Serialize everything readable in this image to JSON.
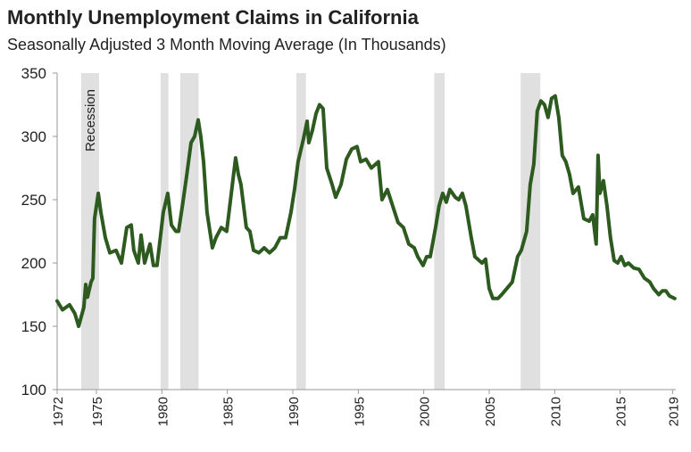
{
  "chart_data": {
    "type": "line",
    "title": "Monthly Unemployment Claims in California",
    "subtitle": "Seasonally Adjusted 3 Month Moving Average (In Thousands)",
    "recession_label": "Recession",
    "recessions": [
      [
        1973.84,
        1975.2
      ],
      [
        1979.9,
        1980.5
      ],
      [
        1981.4,
        1982.8
      ],
      [
        1990.27,
        1991.0
      ],
      [
        2000.8,
        2001.6
      ],
      [
        2007.4,
        2008.9
      ]
    ],
    "recession_color": "#e0e0e0",
    "x": [
      1972.0,
      1972.41,
      1972.95,
      1973.36,
      1973.64,
      1974.04,
      1974.18,
      1974.32,
      1974.59,
      1974.73,
      1974.86,
      1975.14,
      1975.34,
      1975.68,
      1976.02,
      1976.5,
      1976.91,
      1977.32,
      1977.66,
      1977.86,
      1978.2,
      1978.41,
      1978.68,
      1979.09,
      1979.36,
      1979.63,
      1980.11,
      1980.45,
      1980.73,
      1981.07,
      1981.27,
      1981.61,
      1981.88,
      1982.23,
      1982.5,
      1982.77,
      1982.97,
      1983.18,
      1983.45,
      1983.86,
      1984.13,
      1984.54,
      1984.95,
      1985.22,
      1985.63,
      1985.84,
      1986.04,
      1986.45,
      1986.72,
      1987.0,
      1987.41,
      1987.81,
      1988.22,
      1988.63,
      1989.04,
      1989.45,
      1989.86,
      1990.13,
      1990.4,
      1990.81,
      1991.09,
      1991.22,
      1991.5,
      1991.77,
      1992.04,
      1992.31,
      1992.59,
      1993.0,
      1993.27,
      1993.68,
      1994.09,
      1994.5,
      1994.9,
      1995.18,
      1995.59,
      1995.99,
      1996.54,
      1996.81,
      1997.22,
      1997.63,
      1998.04,
      1998.45,
      1998.86,
      1999.27,
      1999.54,
      1999.95,
      2000.22,
      2000.49,
      2000.9,
      2001.17,
      2001.45,
      2001.72,
      2001.99,
      2002.4,
      2002.67,
      2002.95,
      2003.22,
      2003.63,
      2003.9,
      2004.45,
      2004.72,
      2004.99,
      2005.27,
      2005.67,
      2005.95,
      2006.36,
      2006.76,
      2007.17,
      2007.45,
      2007.86,
      2008.13,
      2008.4,
      2008.67,
      2008.95,
      2009.22,
      2009.49,
      2009.76,
      2010.04,
      2010.31,
      2010.58,
      2010.85,
      2011.13,
      2011.4,
      2011.81,
      2012.22,
      2012.63,
      2012.9,
      2013.17,
      2013.31,
      2013.45,
      2013.72,
      2013.99,
      2014.26,
      2014.54,
      2014.81,
      2015.08,
      2015.35,
      2015.63,
      2016.04,
      2016.44,
      2016.85,
      2017.26,
      2017.54,
      2017.95,
      2018.22,
      2018.49,
      2018.76,
      2019.17
    ],
    "series": [
      {
        "name": "Unemployment Claims",
        "color": "#2d5a1e",
        "values": [
          170,
          163,
          167,
          160,
          150,
          165,
          183,
          173,
          185,
          188,
          235,
          255,
          240,
          220,
          208,
          210,
          200,
          228,
          230,
          210,
          200,
          222,
          200,
          215,
          198,
          198,
          240,
          255,
          230,
          225,
          225,
          248,
          268,
          295,
          300,
          313,
          300,
          280,
          240,
          212,
          220,
          228,
          225,
          248,
          283,
          270,
          262,
          228,
          225,
          210,
          208,
          212,
          208,
          212,
          220,
          220,
          240,
          258,
          280,
          298,
          312,
          295,
          305,
          318,
          325,
          322,
          275,
          262,
          252,
          262,
          282,
          290,
          292,
          280,
          282,
          275,
          280,
          250,
          258,
          245,
          232,
          228,
          215,
          212,
          205,
          198,
          205,
          205,
          228,
          245,
          255,
          248,
          258,
          252,
          250,
          255,
          245,
          220,
          205,
          200,
          203,
          180,
          172,
          172,
          175,
          180,
          185,
          205,
          210,
          225,
          262,
          278,
          320,
          328,
          325,
          315,
          330,
          332,
          315,
          285,
          280,
          270,
          255,
          260,
          235,
          233,
          238,
          215,
          285,
          255,
          265,
          245,
          220,
          202,
          200,
          205,
          198,
          200,
          196,
          195,
          188,
          185,
          180,
          175,
          178,
          178,
          174,
          172
        ]
      }
    ],
    "xlim": [
      1972,
      2019.25
    ],
    "xticks": [
      1972,
      1975,
      1980,
      1985,
      1990,
      1995,
      2000,
      2005,
      2010,
      2015,
      2019
    ],
    "ylim": [
      100,
      350
    ],
    "yticks": [
      100,
      150,
      200,
      250,
      300,
      350
    ]
  }
}
